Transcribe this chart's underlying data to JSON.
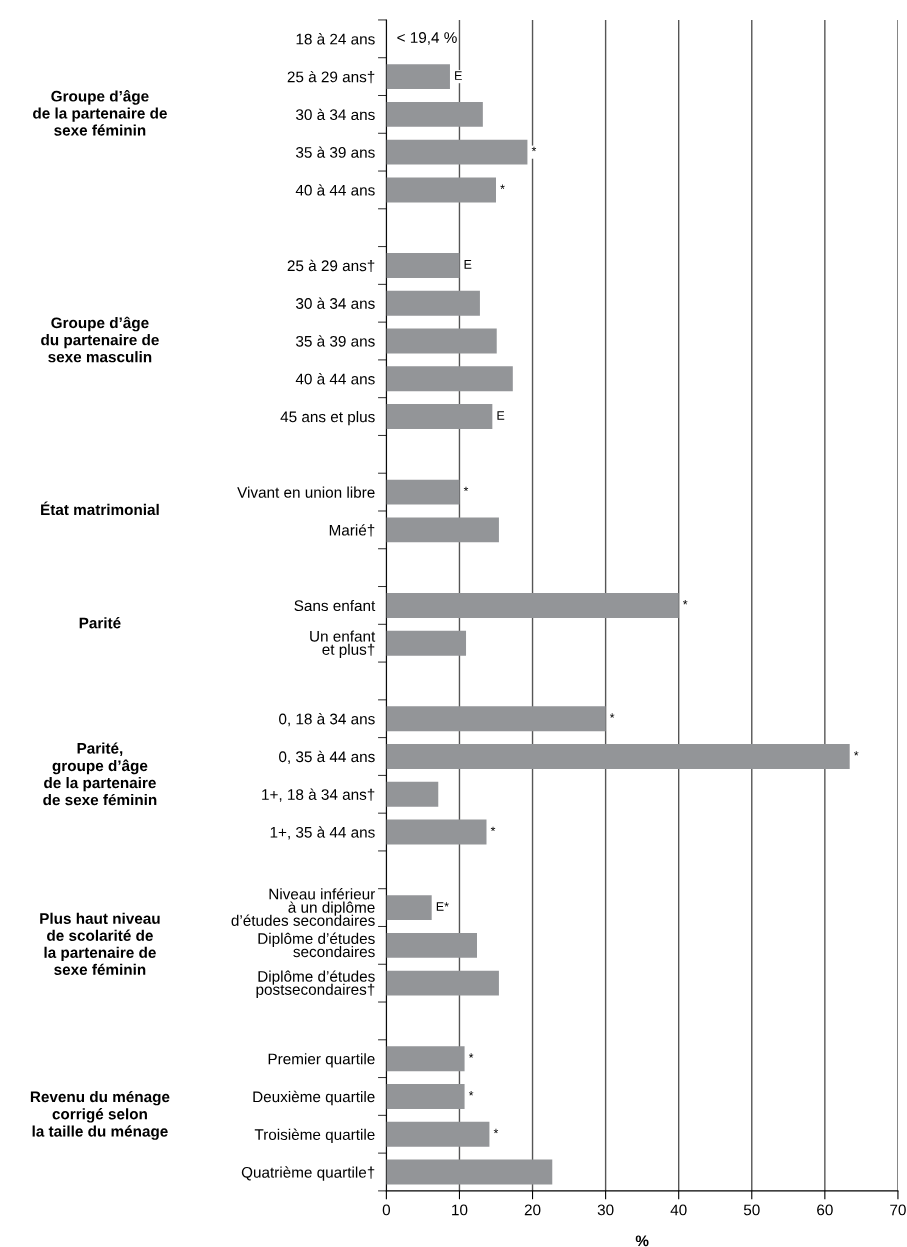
{
  "chart_data": {
    "type": "bar",
    "orientation": "horizontal",
    "xlabel": "%",
    "categories": [
      "18 à 24 ans",
      "25 à 29 ans†",
      "30 à 34 ans",
      "35 à 39 ans",
      "40 à 44 ans",
      null,
      "25 à 29 ans†",
      "30 à 34 ans",
      "35 à 39 ans",
      "40 à 44 ans",
      "45 ans et plus",
      null,
      "Vivant en union libre",
      "Marié†",
      null,
      "Sans enfant",
      "Un enfant\net plus†",
      null,
      "0, 18 à 34 ans",
      "0, 35 à 44 ans",
      "1+, 18 à 34 ans†",
      "1+, 35 à 44 ans",
      null,
      "Niveau inférieur\nà un diplôme\nd’études secondaires",
      "Diplôme d’études\nsecondaires",
      "Diplôme d’études\npostsecondaires†",
      null,
      "Premier quartile",
      "Deuxième quartile",
      "Troisième quartile",
      "Quatrième quartile†"
    ],
    "values": [
      null,
      8.7,
      13.2,
      19.3,
      15.0,
      null,
      10.0,
      12.8,
      15.1,
      17.3,
      14.5,
      null,
      10.0,
      15.4,
      null,
      40.0,
      10.9,
      null,
      30.0,
      63.4,
      7.1,
      13.7,
      null,
      6.2,
      12.4,
      15.4,
      null,
      10.7,
      10.7,
      14.1,
      22.7
    ],
    "value_labels": [
      "< 19,4 %",
      "E",
      null,
      "*",
      "*",
      null,
      "E",
      null,
      null,
      null,
      "E",
      null,
      "*",
      null,
      null,
      "*",
      null,
      null,
      "*",
      "*",
      null,
      "*",
      null,
      "E*",
      null,
      null,
      null,
      "*",
      "*",
      "*",
      null
    ],
    "color": "#939598",
    "xlim": [
      0,
      70
    ],
    "xticks": [
      0,
      10,
      20,
      30,
      40,
      50,
      60,
      70
    ],
    "grid": "x",
    "annotations": [
      "Groupe d’âge\nde la partenaire de\nsexe féminin",
      "Groupe d’âge\ndu partenaire de\nsexe masculin",
      "État matrimonial",
      "Parité",
      "Parité,\ngroupe d’âge\nde la partenaire\nde sexe féminin",
      "Plus haut niveau\nde scolarité de\nla partenaire de\nsexe féminin",
      "Revenu du ménage\ncorrigé selon\nla taille du ménage"
    ]
  }
}
